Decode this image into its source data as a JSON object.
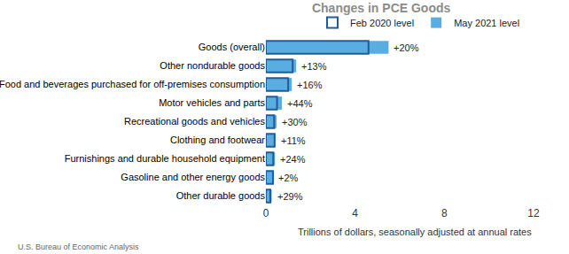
{
  "chart_data": {
    "type": "bar",
    "orientation": "horizontal",
    "title": "Changes in PCE Goods",
    "xlabel": "Trillions of dollars, seasonally adjusted at annual rates",
    "source": "U.S. Bureau of Economic Analysis",
    "categories": [
      "Goods (overall)",
      "Other nondurable goods",
      "Food and beverages purchased for off-premises consumption",
      "Motor vehicles and parts",
      "Recreational goods and vehicles",
      "Clothing and footwear",
      "Furnishings and durable household equipment",
      "Gasoline and other energy goods",
      "Other durable goods"
    ],
    "series": [
      {
        "name": "Feb 2020 level",
        "color": "#1f5c99",
        "marker": "outline",
        "values": [
          4.6,
          1.2,
          1.0,
          0.5,
          0.37,
          0.39,
          0.33,
          0.32,
          0.2
        ]
      },
      {
        "name": "May 2021 level",
        "color": "#5aade0",
        "marker": "filled",
        "values": [
          5.5,
          1.36,
          1.16,
          0.72,
          0.48,
          0.43,
          0.41,
          0.33,
          0.26
        ]
      }
    ],
    "pct_change": [
      20,
      13,
      16,
      44,
      30,
      11,
      24,
      2,
      29
    ],
    "pct_change_labels": [
      "+20%",
      "+13%",
      "+16%",
      "+44%",
      "+30%",
      "+11%",
      "+24%",
      "+2%",
      "+29%"
    ],
    "xlim": [
      0,
      12
    ],
    "xticks": [
      0,
      4,
      8,
      12
    ],
    "grid": false,
    "legend": "top"
  }
}
